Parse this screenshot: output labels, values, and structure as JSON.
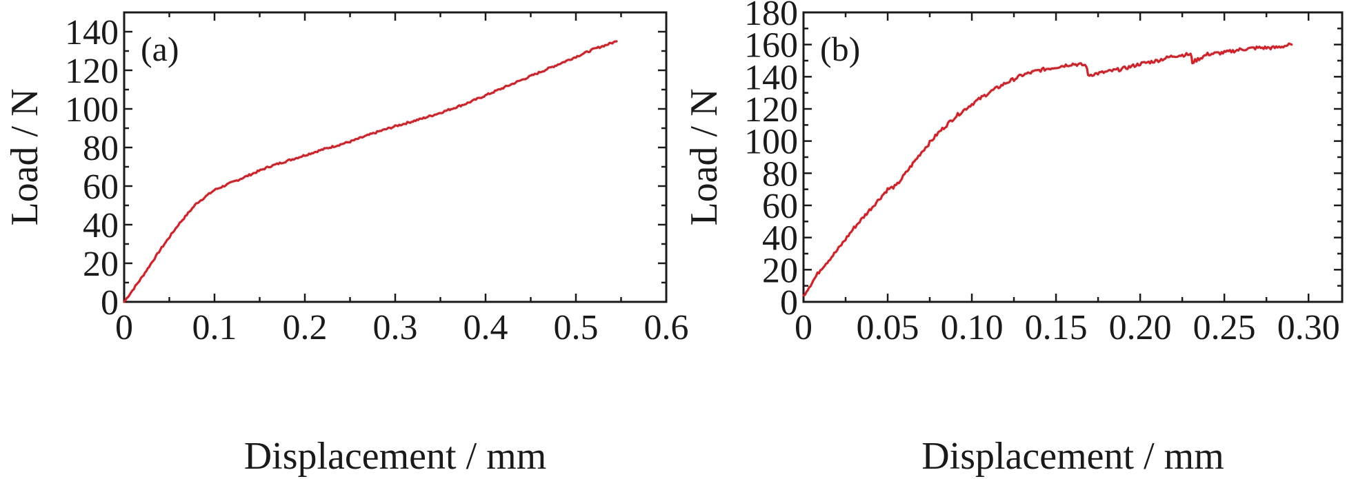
{
  "chart_data": [
    {
      "type": "line",
      "panel_label": "(a)",
      "xlabel": "Displacement / mm",
      "ylabel": "Load / N",
      "xlim": [
        0,
        0.6
      ],
      "ylim": [
        0,
        150
      ],
      "xticks": [
        "0",
        "0.1",
        "0.2",
        "0.3",
        "0.4",
        "0.5",
        "0.6"
      ],
      "yticks": [
        "0",
        "20",
        "40",
        "60",
        "80",
        "100",
        "120",
        "140"
      ],
      "xtick_values": [
        0,
        0.1,
        0.2,
        0.3,
        0.4,
        0.5,
        0.6
      ],
      "ytick_values": [
        0,
        20,
        40,
        60,
        80,
        100,
        120,
        140
      ],
      "grid": false,
      "series_color": "#dd1c24",
      "series": [
        {
          "x": [
            0,
            0.02,
            0.04,
            0.06,
            0.08,
            0.1,
            0.12,
            0.14,
            0.16,
            0.18,
            0.2,
            0.22,
            0.25,
            0.28,
            0.3,
            0.33,
            0.35,
            0.38,
            0.4,
            0.43,
            0.45,
            0.48,
            0.5,
            0.52,
            0.545
          ],
          "y": [
            0,
            13,
            27,
            40,
            51,
            58,
            62,
            66,
            70,
            73,
            76,
            79,
            83,
            88,
            91,
            95,
            98,
            103,
            107,
            113,
            117,
            123,
            127,
            131,
            135
          ]
        }
      ]
    },
    {
      "type": "line",
      "panel_label": "(b)",
      "xlabel": "Displacement / mm",
      "ylabel": "Load / N",
      "xlim": [
        0,
        0.32
      ],
      "ylim": [
        0,
        180
      ],
      "xticks": [
        "0",
        "0.05",
        "0.10",
        "0.15",
        "0.20",
        "0.25",
        "0.30"
      ],
      "yticks": [
        "0",
        "20",
        "40",
        "60",
        "80",
        "100",
        "120",
        "140",
        "160",
        "180"
      ],
      "xtick_values": [
        0,
        0.05,
        0.1,
        0.15,
        0.2,
        0.25,
        0.3
      ],
      "ytick_values": [
        0,
        20,
        40,
        60,
        80,
        100,
        120,
        140,
        160,
        180
      ],
      "grid": false,
      "series_color": "#dd1c24",
      "series": [
        {
          "x": [
            0,
            0.01,
            0.02,
            0.03,
            0.04,
            0.05,
            0.055,
            0.06,
            0.07,
            0.08,
            0.09,
            0.1,
            0.11,
            0.12,
            0.13,
            0.14,
            0.15,
            0.16,
            0.168,
            0.169,
            0.18,
            0.19,
            0.2,
            0.21,
            0.22,
            0.23,
            0.231,
            0.24,
            0.25,
            0.26,
            0.27,
            0.28,
            0.29
          ],
          "y": [
            4,
            20,
            32,
            46,
            58,
            70,
            72,
            79,
            93,
            105,
            115,
            123,
            130,
            136,
            141,
            144,
            146,
            148,
            147,
            141,
            143,
            145,
            148,
            150,
            153,
            154,
            149,
            154,
            155,
            157,
            158,
            158,
            160
          ]
        }
      ]
    }
  ]
}
